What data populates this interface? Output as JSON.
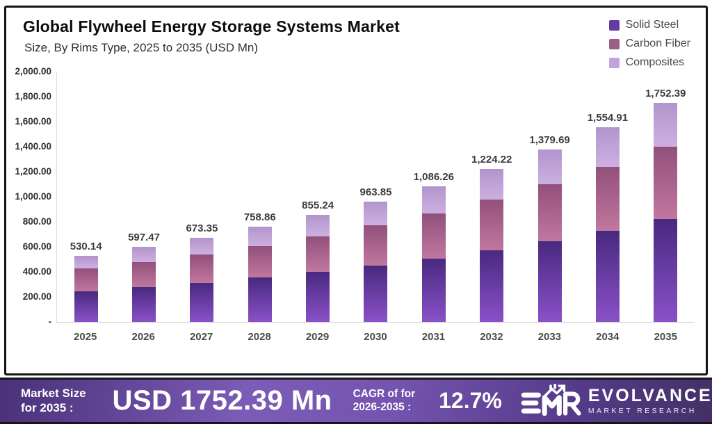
{
  "header": {
    "title": "Global Flywheel Energy Storage Systems Market",
    "subtitle": "Size, By Rims Type, 2025 to 2035 (USD Mn)"
  },
  "legend": [
    {
      "label": "Solid Steel",
      "color": "#653aa0"
    },
    {
      "label": "Carbon Fiber",
      "color": "#9c5e84"
    },
    {
      "label": "Composites",
      "color": "#c3a3dc"
    }
  ],
  "chart_data": {
    "type": "bar",
    "stacked": true,
    "title": "Global Flywheel Energy Storage Systems Market",
    "subtitle": "Size, By Rims Type, 2025 to 2035 (USD Mn)",
    "xlabel": "",
    "ylabel": "USD Mn",
    "ylim": [
      0,
      2000
    ],
    "grid": false,
    "legend_position": "top-right",
    "categories": [
      "2025",
      "2026",
      "2027",
      "2028",
      "2029",
      "2030",
      "2031",
      "2032",
      "2033",
      "2034",
      "2035"
    ],
    "series": [
      {
        "name": "Solid Steel",
        "values": [
          245.7,
          277.3,
          313.0,
          353.2,
          398.6,
          449.9,
          507.8,
          573.1,
          646.8,
          730.0,
          823.9
        ],
        "gradient_top": "#48297f",
        "gradient_bottom": "#8a51c8"
      },
      {
        "name": "Carbon Fiber",
        "values": [
          179.9,
          202.0,
          226.9,
          254.8,
          286.1,
          321.3,
          360.8,
          405.2,
          455.1,
          511.0,
          573.9
        ],
        "gradient_top": "#91507a",
        "gradient_bottom": "#c1779f"
      },
      {
        "name": "Composites",
        "values": [
          104.5,
          118.2,
          133.5,
          150.9,
          170.5,
          192.7,
          217.7,
          245.9,
          277.8,
          313.9,
          354.6
        ],
        "gradient_top": "#b294cd",
        "gradient_bottom": "#cdb0e0"
      }
    ],
    "totals": [
      530.14,
      597.47,
      673.35,
      758.86,
      855.24,
      963.85,
      1086.26,
      1224.22,
      1379.69,
      1554.91,
      1752.39
    ],
    "total_labels": [
      "530.14",
      "597.47",
      "673.35",
      "758.86",
      "855.24",
      "963.85",
      "1,086.26",
      "1,224.22",
      "1,379.69",
      "1,554.91",
      "1,752.39"
    ],
    "y_ticks": [
      "2,000.00",
      "1,800.00",
      "1,600.00",
      "1,400.00",
      "1,200.00",
      "1,000.00",
      "800.00",
      "600.00",
      "400.00",
      "200.00",
      "-"
    ]
  },
  "banner": {
    "market_size_label_line1": "Market Size",
    "market_size_label_line2": "for 2035 :",
    "market_size_value": "USD 1752.39 Mn",
    "cagr_label_line1": "CAGR of for",
    "cagr_label_line2": "2026-2035 :",
    "cagr_value": "12.7%",
    "brand_name": "EVOLVANCE",
    "brand_tagline": "MARKET RESEARCH"
  }
}
